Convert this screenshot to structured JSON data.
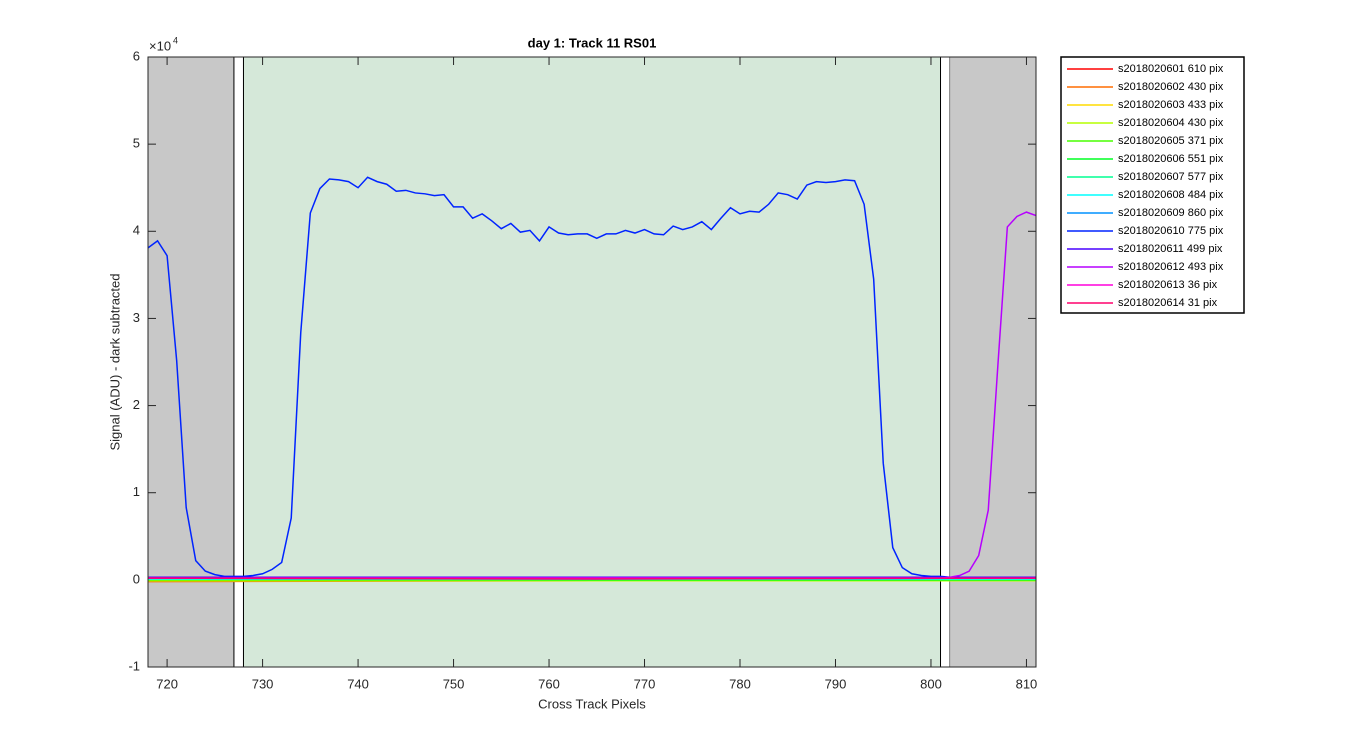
{
  "chart_data": {
    "type": "line",
    "title": "day 1: Track 11  RS01",
    "xlabel": "Cross Track Pixels",
    "ylabel": "Signal (ADU) - dark subtracted",
    "y_exponent": {
      "base": "×10",
      "power": "4"
    },
    "xlim": [
      718,
      811
    ],
    "ylim": [
      -1,
      6
    ],
    "xticks": [
      720,
      730,
      740,
      750,
      760,
      770,
      780,
      790,
      800,
      810
    ],
    "yticks": [
      -1,
      0,
      1,
      2,
      3,
      4,
      5,
      6
    ],
    "legend": "outside-right",
    "regions": [
      {
        "x0": 718,
        "x1": 727,
        "color": "#c8c8c8",
        "outlined": false
      },
      {
        "x0": 727,
        "x1": 728,
        "color": "#ffffff",
        "outlined": true
      },
      {
        "x0": 728,
        "x1": 801,
        "color": "#d5e8d9",
        "outlined": true
      },
      {
        "x0": 801,
        "x1": 802,
        "color": "#ffffff",
        "outlined": true
      },
      {
        "x0": 802,
        "x1": 811,
        "color": "#c8c8c8",
        "outlined": false
      }
    ],
    "series": [
      {
        "name": "s2018020601 610 pix",
        "color": "#ff0000",
        "x": [
          718,
          765,
          811
        ],
        "values": [
          0.01,
          0.0,
          0.01
        ]
      },
      {
        "name": "s2018020602 430 pix",
        "color": "#ff6d00",
        "x": [
          718,
          765,
          811
        ],
        "values": [
          -0.02,
          -0.01,
          -0.01
        ]
      },
      {
        "name": "s2018020603 433 pix",
        "color": "#ffdb00",
        "x": [
          718,
          765,
          811
        ],
        "values": [
          0.0,
          -0.01,
          0.0
        ]
      },
      {
        "name": "s2018020604 430 pix",
        "color": "#b6ff00",
        "x": [
          718,
          765,
          811
        ],
        "values": [
          -0.01,
          -0.01,
          -0.01
        ]
      },
      {
        "name": "s2018020605 371 pix",
        "color": "#49ff00",
        "x": [
          718,
          765,
          811
        ],
        "values": [
          0.0,
          0.0,
          0.0
        ]
      },
      {
        "name": "s2018020606 551 pix",
        "color": "#00ff24",
        "x": [
          718,
          765,
          811
        ],
        "values": [
          0.01,
          0.0,
          0.0
        ]
      },
      {
        "name": "s2018020607 577 pix",
        "color": "#00ff92",
        "x": [
          718,
          765,
          811
        ],
        "values": [
          0.01,
          0.01,
          0.01
        ]
      },
      {
        "name": "s2018020608 484 pix",
        "color": "#00ffff",
        "x": [
          718,
          765,
          811
        ],
        "values": [
          0.01,
          0.01,
          0.01
        ]
      },
      {
        "name": "s2018020609 860 pix",
        "color": "#0092ff",
        "x": [
          718,
          765,
          811
        ],
        "values": [
          0.02,
          0.01,
          0.02
        ]
      },
      {
        "name": "s2018020610 775 pix",
        "color": "#0024ff",
        "x": [
          718,
          719,
          720,
          721,
          722,
          723,
          724,
          725,
          726,
          727,
          728,
          729,
          730,
          731,
          732,
          733,
          734,
          735,
          736,
          737,
          738,
          739,
          740,
          741,
          742,
          743,
          744,
          745,
          746,
          747,
          748,
          749,
          750,
          751,
          752,
          753,
          754,
          755,
          756,
          757,
          758,
          759,
          760,
          761,
          762,
          763,
          764,
          765,
          766,
          767,
          768,
          769,
          770,
          771,
          772,
          773,
          774,
          775,
          776,
          777,
          778,
          779,
          780,
          781,
          782,
          783,
          784,
          785,
          786,
          787,
          788,
          789,
          790,
          791,
          792,
          793,
          794,
          795,
          796,
          797,
          798,
          799,
          800,
          801,
          802,
          803,
          811
        ],
        "values": [
          3.81,
          3.89,
          3.72,
          2.52,
          0.83,
          0.22,
          0.1,
          0.06,
          0.04,
          0.04,
          0.04,
          0.05,
          0.07,
          0.12,
          0.2,
          0.71,
          2.84,
          4.21,
          4.49,
          4.6,
          4.59,
          4.57,
          4.5,
          4.62,
          4.57,
          4.54,
          4.46,
          4.47,
          4.44,
          4.43,
          4.41,
          4.42,
          4.28,
          4.28,
          4.15,
          4.2,
          4.12,
          4.03,
          4.09,
          3.99,
          4.01,
          3.89,
          4.05,
          3.98,
          3.96,
          3.97,
          3.97,
          3.92,
          3.97,
          3.97,
          4.01,
          3.98,
          4.02,
          3.97,
          3.96,
          4.06,
          4.02,
          4.05,
          4.11,
          4.02,
          4.15,
          4.27,
          4.2,
          4.23,
          4.22,
          4.31,
          4.44,
          4.42,
          4.37,
          4.53,
          4.57,
          4.56,
          4.57,
          4.59,
          4.58,
          4.31,
          3.45,
          1.34,
          0.37,
          0.14,
          0.07,
          0.05,
          0.04,
          0.04,
          0.03,
          0.03,
          0.02
        ]
      },
      {
        "name": "s2018020611 499 pix",
        "color": "#4900ff",
        "x": [
          718,
          765,
          811
        ],
        "values": [
          0.03,
          0.03,
          0.03
        ]
      },
      {
        "name": "s2018020612 493 pix",
        "color": "#b600ff",
        "x": [
          718,
          760,
          799,
          800,
          801,
          802,
          803,
          804,
          805,
          806,
          807,
          808,
          809,
          810,
          811
        ],
        "values": [
          0.02,
          0.02,
          0.02,
          0.02,
          0.02,
          0.03,
          0.05,
          0.1,
          0.28,
          0.8,
          2.45,
          4.05,
          4.17,
          4.22,
          4.18
        ]
      },
      {
        "name": "s2018020613 36 pix",
        "color": "#ff00db",
        "x": [
          718,
          765,
          811
        ],
        "values": [
          0.02,
          0.02,
          0.02
        ]
      },
      {
        "name": "s2018020614 31 pix",
        "color": "#ff006d",
        "x": [
          718,
          765,
          811
        ],
        "values": [
          0.02,
          0.01,
          0.02
        ]
      }
    ]
  }
}
